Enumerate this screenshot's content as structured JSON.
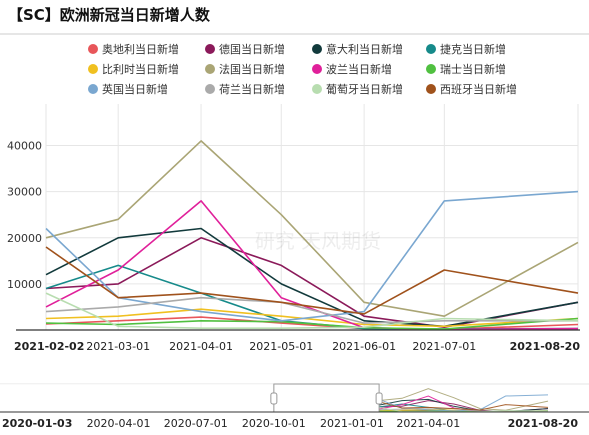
{
  "title": "【SC】欧洲新冠当日新增人数",
  "watermark": "研究 天风期货",
  "colors": {
    "grid": "#e6e6e6",
    "axis": "#333333",
    "navigator_outline": "#999999"
  },
  "chart_data": {
    "type": "line",
    "title": "【SC】欧洲新冠当日新增人数",
    "x_range": [
      "2021-02-02",
      "2021-08-20"
    ],
    "x_ticks": [
      "2021-02-02",
      "2021-03-01",
      "2021-04-01",
      "2021-05-01",
      "2021-06-01",
      "2021-07-01",
      "2021-08-20"
    ],
    "y_ticks": [
      10000,
      20000,
      30000,
      40000
    ],
    "ylim": [
      0,
      49000
    ],
    "grid": true,
    "legend_position": "top",
    "navigator": {
      "x_range": [
        "2020-01-03",
        "2021-08-20"
      ],
      "x_ticks": [
        "2020-01-03",
        "2020-04-01",
        "2020-07-01",
        "2020-10-01",
        "2021-01-01",
        "2021-04-01",
        "2021-08-20"
      ],
      "selected_range": [
        "2020-10-01",
        "2021-02-02"
      ]
    },
    "series": [
      {
        "name": "奥地利当日新增",
        "color": "#e8565a",
        "x": [
          "2021-02-02",
          "2021-03-01",
          "2021-04-01",
          "2021-05-01",
          "2021-06-01",
          "2021-07-01",
          "2021-08-20"
        ],
        "values": [
          1300,
          2000,
          2800,
          1500,
          300,
          150,
          1200
        ]
      },
      {
        "name": "德国当日新增",
        "color": "#8b1a5a",
        "x": [
          "2021-02-02",
          "2021-03-01",
          "2021-04-01",
          "2021-05-01",
          "2021-06-01",
          "2021-07-01",
          "2021-08-20"
        ],
        "values": [
          9000,
          10000,
          20000,
          14000,
          3000,
          600,
          6000
        ]
      },
      {
        "name": "意大利当日新增",
        "color": "#123a3c",
        "x": [
          "2021-02-02",
          "2021-03-01",
          "2021-04-01",
          "2021-05-01",
          "2021-06-01",
          "2021-07-01",
          "2021-08-20"
        ],
        "values": [
          12000,
          20000,
          22000,
          10000,
          2000,
          800,
          6000
        ]
      },
      {
        "name": "捷克当日新增",
        "color": "#168a8a",
        "x": [
          "2021-02-02",
          "2021-03-01",
          "2021-04-01",
          "2021-05-01",
          "2021-06-01",
          "2021-07-01",
          "2021-08-20"
        ],
        "values": [
          9000,
          14000,
          8000,
          2000,
          300,
          200,
          300
        ]
      },
      {
        "name": "比利时当日新增",
        "color": "#f0c020",
        "x": [
          "2021-02-02",
          "2021-03-01",
          "2021-04-01",
          "2021-05-01",
          "2021-06-01",
          "2021-07-01",
          "2021-08-20"
        ],
        "values": [
          2500,
          3000,
          4500,
          3000,
          1200,
          800,
          2500
        ]
      },
      {
        "name": "法国当日新增",
        "color": "#aaa575",
        "x": [
          "2021-02-02",
          "2021-03-01",
          "2021-04-01",
          "2021-05-01",
          "2021-06-01",
          "2021-07-01",
          "2021-08-20"
        ],
        "values": [
          20000,
          24000,
          41000,
          25000,
          6000,
          3000,
          19000
        ]
      },
      {
        "name": "波兰当日新增",
        "color": "#e0209a",
        "x": [
          "2021-02-02",
          "2021-03-01",
          "2021-04-01",
          "2021-05-01",
          "2021-06-01",
          "2021-07-01",
          "2021-08-20"
        ],
        "values": [
          5000,
          13000,
          28000,
          7000,
          500,
          100,
          300
        ]
      },
      {
        "name": "瑞士当日新增",
        "color": "#50c040",
        "x": [
          "2021-02-02",
          "2021-03-01",
          "2021-04-01",
          "2021-05-01",
          "2021-06-01",
          "2021-07-01",
          "2021-08-20"
        ],
        "values": [
          1500,
          1200,
          2000,
          1800,
          500,
          200,
          2500
        ]
      },
      {
        "name": "英国当日新增",
        "color": "#7aa7d0",
        "x": [
          "2021-02-02",
          "2021-03-01",
          "2021-04-01",
          "2021-05-01",
          "2021-06-01",
          "2021-07-01",
          "2021-08-20"
        ],
        "values": [
          22000,
          7000,
          4000,
          2000,
          4000,
          28000,
          30000
        ]
      },
      {
        "name": "荷兰当日新增",
        "color": "#aaaaaa",
        "x": [
          "2021-02-02",
          "2021-03-01",
          "2021-04-01",
          "2021-05-01",
          "2021-06-01",
          "2021-07-01",
          "2021-08-20"
        ],
        "values": [
          4000,
          5000,
          7000,
          6000,
          1500,
          2000,
          2000
        ]
      },
      {
        "name": "葡萄牙当日新增",
        "color": "#b8ddb0",
        "x": [
          "2021-02-02",
          "2021-03-01",
          "2021-04-01",
          "2021-05-01",
          "2021-06-01",
          "2021-07-01",
          "2021-08-20"
        ],
        "values": [
          8000,
          800,
          400,
          400,
          600,
          2500,
          2000
        ]
      },
      {
        "name": "西班牙当日新增",
        "color": "#a0521c",
        "x": [
          "2021-02-02",
          "2021-03-01",
          "2021-04-01",
          "2021-05-01",
          "2021-06-01",
          "2021-07-01",
          "2021-08-20"
        ],
        "values": [
          18000,
          7000,
          8000,
          6000,
          3500,
          13000,
          8000
        ]
      }
    ]
  }
}
